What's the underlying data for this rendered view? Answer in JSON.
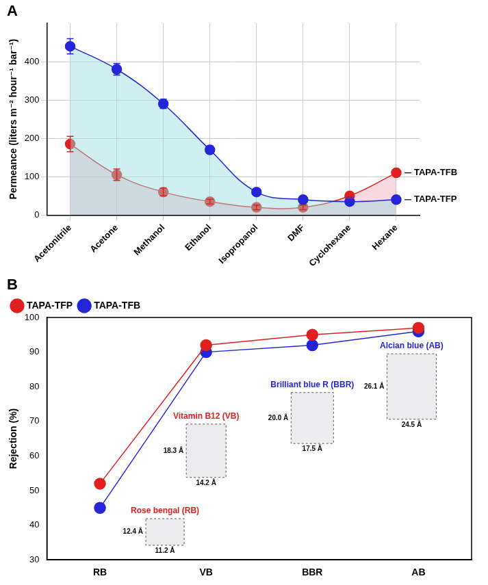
{
  "chart_data": [
    {
      "type": "line",
      "title": "A",
      "y_label": "Permeance (liters m⁻² hour⁻¹ bar⁻¹)",
      "categories": [
        "Acetonitrile",
        "Acetone",
        "Methanol",
        "Ethanol",
        "Isopropanol",
        "DMF",
        "Cyclohexane",
        "Hexane"
      ],
      "series": [
        {
          "name": "TAPA-TFP",
          "color": "#2525d8",
          "values": [
            440,
            380,
            290,
            170,
            60,
            40,
            35,
            40
          ],
          "errors": [
            20,
            15,
            12,
            10,
            8,
            8,
            8,
            8
          ]
        },
        {
          "name": "TAPA-TFB",
          "color": "#e02020",
          "values": [
            185,
            105,
            60,
            35,
            20,
            20,
            50,
            110
          ],
          "errors": [
            20,
            15,
            10,
            6,
            6,
            6,
            6,
            6
          ]
        }
      ],
      "ylim": [
        0,
        500
      ],
      "yticks": [
        0,
        100,
        200,
        300,
        400
      ],
      "grid": true,
      "marker": "circle"
    },
    {
      "type": "line",
      "title": "B",
      "y_label": "Rejection (%)",
      "categories": [
        "RB",
        "VB",
        "BBR",
        "AB"
      ],
      "series": [
        {
          "name": "TAPA-TFP",
          "color": "#e02020",
          "values": [
            52,
            92,
            95,
            97
          ]
        },
        {
          "name": "TAPA-TFB",
          "color": "#2525d8",
          "values": [
            45,
            90,
            92,
            96
          ]
        }
      ],
      "ylim": [
        30,
        100
      ],
      "yticks": [
        30,
        40,
        50,
        60,
        70,
        80,
        90,
        100
      ],
      "grid": false,
      "legend": "upper left",
      "marker": "circle",
      "annotations": [
        {
          "text": "Rose bengal (RB)",
          "color": "#e02020",
          "dimensions": [
            "12.4 Å",
            "11.2 Å"
          ]
        },
        {
          "text": "Vitamin B12 (VB)",
          "color": "#e02020",
          "dimensions": [
            "18.3 Å",
            "14.2 Å"
          ]
        },
        {
          "text": "Brilliant blue R (BBR)",
          "color": "#2525d8",
          "dimensions": [
            "20.0 Å",
            "17.5 Å"
          ]
        },
        {
          "text": "Alcian blue (AB)",
          "color": "#2525d8",
          "dimensions": [
            "26.1 Å",
            "24.5 Å"
          ]
        }
      ]
    }
  ]
}
